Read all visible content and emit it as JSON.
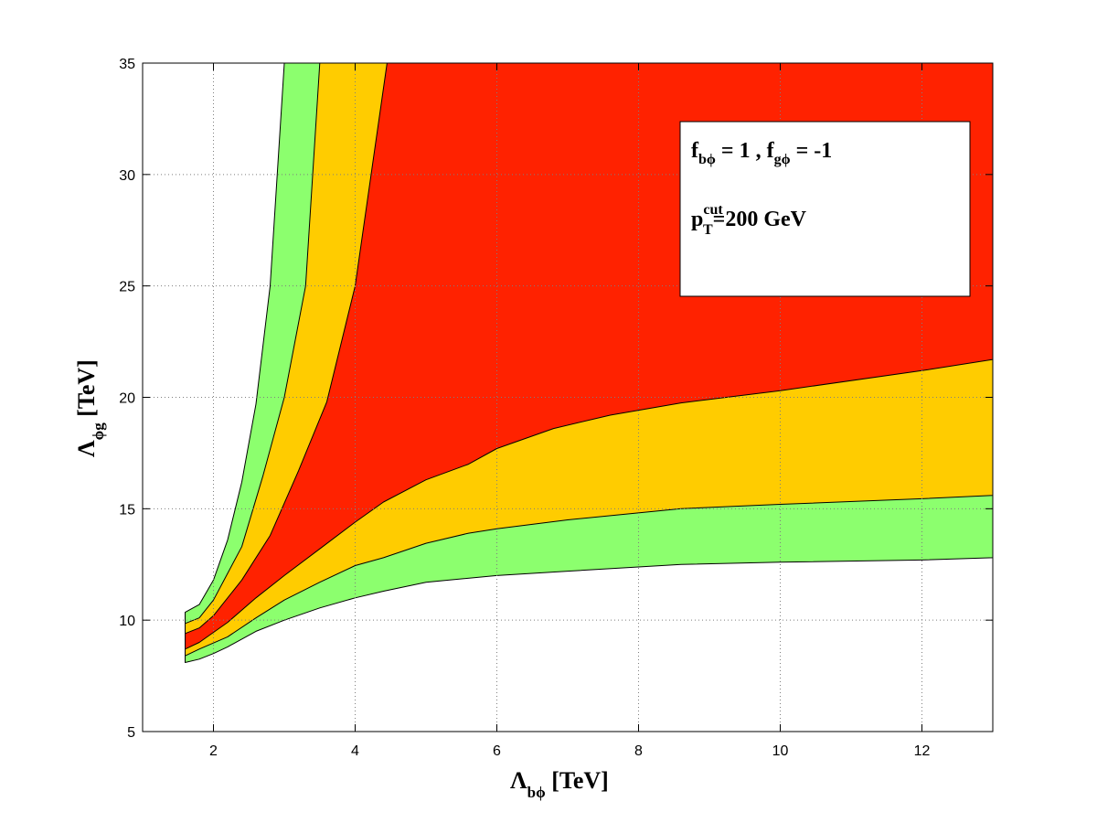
{
  "chart_data": {
    "type": "area",
    "xlabel": {
      "main": "Λ",
      "sub": "bϕ",
      "unit": " [TeV]"
    },
    "ylabel": {
      "main": "Λ",
      "sub": "ϕg",
      "unit": " [TeV]"
    },
    "xlim": [
      1,
      13
    ],
    "ylim": [
      5,
      35
    ],
    "xticks": [
      2,
      4,
      6,
      8,
      10,
      12
    ],
    "yticks": [
      5,
      10,
      15,
      20,
      25,
      30,
      35
    ],
    "grid": true,
    "colors": {
      "outer": "#8cff6e",
      "middle": "#ffcc00",
      "inner": "#ff2200",
      "grid": "#7f7f7f"
    },
    "annotation": {
      "line1": {
        "f1": "f",
        "f1_sub": "bϕ",
        "mid": " = 1 , ",
        "f2": "f",
        "f2_sub": "gϕ",
        "end": " = -1"
      },
      "line2": {
        "p": "p",
        "p_sub": "T",
        "p_sup": "cut",
        "rest": "=200 GeV"
      }
    },
    "bands": [
      {
        "name": "",
        "color": "#8cff6e",
        "boundary": [
          [
            1.6,
            10.35
          ],
          [
            1.8,
            10.7
          ],
          [
            2.0,
            11.8
          ],
          [
            2.2,
            13.6
          ],
          [
            2.4,
            16.2
          ],
          [
            2.6,
            19.7
          ],
          [
            2.8,
            25.0
          ],
          [
            3.0,
            35.0
          ],
          [
            3.5,
            35.0
          ],
          [
            4.0,
            35.0
          ],
          [
            6.0,
            35.0
          ],
          [
            8.0,
            35.0
          ],
          [
            10.0,
            35.0
          ],
          [
            13.0,
            35.0
          ],
          [
            13.0,
            12.8
          ],
          [
            12.0,
            12.7
          ],
          [
            10.0,
            12.6
          ],
          [
            8.6,
            12.5
          ],
          [
            7.0,
            12.2
          ],
          [
            6.0,
            12.0
          ],
          [
            5.0,
            11.7
          ],
          [
            4.4,
            11.3
          ],
          [
            4.0,
            11.0
          ],
          [
            3.5,
            10.55
          ],
          [
            3.0,
            10.0
          ],
          [
            2.6,
            9.5
          ],
          [
            2.2,
            8.8
          ],
          [
            2.0,
            8.5
          ],
          [
            1.8,
            8.25
          ],
          [
            1.6,
            8.1
          ]
        ]
      },
      {
        "name": "",
        "color": "#ffcc00",
        "boundary": [
          [
            1.6,
            9.85
          ],
          [
            1.8,
            10.1
          ],
          [
            2.0,
            10.9
          ],
          [
            2.4,
            13.3
          ],
          [
            2.7,
            16.5
          ],
          [
            3.0,
            20.0
          ],
          [
            3.3,
            25.0
          ],
          [
            3.5,
            35.0
          ],
          [
            6.0,
            35.0
          ],
          [
            10.0,
            35.0
          ],
          [
            13.0,
            35.0
          ],
          [
            13.0,
            15.6
          ],
          [
            12.0,
            15.45
          ],
          [
            10.0,
            15.2
          ],
          [
            8.6,
            15.0
          ],
          [
            7.0,
            14.5
          ],
          [
            6.0,
            14.1
          ],
          [
            5.6,
            13.9
          ],
          [
            5.0,
            13.45
          ],
          [
            4.4,
            12.8
          ],
          [
            4.0,
            12.45
          ],
          [
            3.5,
            11.7
          ],
          [
            3.0,
            10.9
          ],
          [
            2.6,
            10.1
          ],
          [
            2.2,
            9.25
          ],
          [
            1.8,
            8.7
          ],
          [
            1.6,
            8.4
          ]
        ]
      },
      {
        "name": "",
        "color": "#ff2200",
        "boundary": [
          [
            1.6,
            9.4
          ],
          [
            1.8,
            9.65
          ],
          [
            2.0,
            10.2
          ],
          [
            2.4,
            11.8
          ],
          [
            2.8,
            13.8
          ],
          [
            3.2,
            16.7
          ],
          [
            3.6,
            19.8
          ],
          [
            4.0,
            25.0
          ],
          [
            4.45,
            35.0
          ],
          [
            6.0,
            35.0
          ],
          [
            10.0,
            35.0
          ],
          [
            13.0,
            35.0
          ],
          [
            13.0,
            21.7
          ],
          [
            12.0,
            21.2
          ],
          [
            10.0,
            20.3
          ],
          [
            8.6,
            19.75
          ],
          [
            7.6,
            19.2
          ],
          [
            6.8,
            18.6
          ],
          [
            6.0,
            17.7
          ],
          [
            5.6,
            17.0
          ],
          [
            5.0,
            16.3
          ],
          [
            4.4,
            15.3
          ],
          [
            4.0,
            14.4
          ],
          [
            3.5,
            13.2
          ],
          [
            3.0,
            12.0
          ],
          [
            2.6,
            11.0
          ],
          [
            2.2,
            9.9
          ],
          [
            1.8,
            9.0
          ],
          [
            1.6,
            8.7
          ]
        ]
      }
    ]
  }
}
